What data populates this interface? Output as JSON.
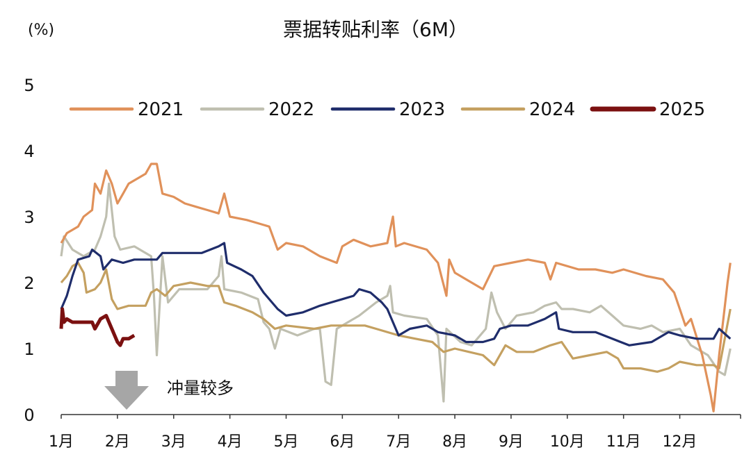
{
  "chart_data": {
    "type": "line",
    "title": "票据转贴利率（6M）",
    "ylabel": "(%)",
    "xlabel": "",
    "ylim": [
      0,
      5
    ],
    "yticks": [
      "0",
      "1",
      "2",
      "3",
      "4",
      "5"
    ],
    "xlim": [
      1,
      13
    ],
    "xticks": [
      "1月",
      "2月",
      "3月",
      "4月",
      "5月",
      "6月",
      "7月",
      "8月",
      "9月",
      "10月",
      "11月",
      "12月"
    ],
    "grid": false,
    "legend": "top",
    "annotation": {
      "text": "冲量较多",
      "month": 2.2,
      "arrow": "down",
      "color": "#A6A6A6"
    },
    "series": [
      {
        "name": "2021",
        "color": "#E0915A",
        "points": [
          [
            1,
            2.6
          ],
          [
            1.1,
            2.75
          ],
          [
            1.3,
            2.85
          ],
          [
            1.4,
            3.0
          ],
          [
            1.55,
            3.1
          ],
          [
            1.6,
            3.5
          ],
          [
            1.7,
            3.35
          ],
          [
            1.8,
            3.7
          ],
          [
            1.9,
            3.5
          ],
          [
            2.0,
            3.2
          ],
          [
            2.1,
            3.35
          ],
          [
            2.2,
            3.5
          ],
          [
            2.5,
            3.65
          ],
          [
            2.6,
            3.8
          ],
          [
            2.7,
            3.8
          ],
          [
            2.8,
            3.35
          ],
          [
            3.0,
            3.3
          ],
          [
            3.2,
            3.2
          ],
          [
            3.4,
            3.15
          ],
          [
            3.6,
            3.1
          ],
          [
            3.8,
            3.05
          ],
          [
            3.9,
            3.35
          ],
          [
            4.0,
            3.0
          ],
          [
            4.3,
            2.95
          ],
          [
            4.5,
            2.9
          ],
          [
            4.7,
            2.85
          ],
          [
            4.85,
            2.5
          ],
          [
            5.0,
            2.6
          ],
          [
            5.3,
            2.55
          ],
          [
            5.6,
            2.4
          ],
          [
            5.9,
            2.3
          ],
          [
            6.0,
            2.55
          ],
          [
            6.2,
            2.65
          ],
          [
            6.5,
            2.55
          ],
          [
            6.8,
            2.6
          ],
          [
            6.9,
            3.0
          ],
          [
            6.95,
            2.55
          ],
          [
            7.1,
            2.6
          ],
          [
            7.5,
            2.5
          ],
          [
            7.7,
            2.3
          ],
          [
            7.85,
            1.8
          ],
          [
            7.9,
            2.35
          ],
          [
            8.0,
            2.15
          ],
          [
            8.3,
            2.0
          ],
          [
            8.5,
            1.9
          ],
          [
            8.7,
            2.25
          ],
          [
            9.0,
            2.3
          ],
          [
            9.3,
            2.35
          ],
          [
            9.6,
            2.3
          ],
          [
            9.7,
            2.05
          ],
          [
            9.8,
            2.3
          ],
          [
            10.2,
            2.2
          ],
          [
            10.5,
            2.2
          ],
          [
            10.8,
            2.15
          ],
          [
            11.0,
            2.2
          ],
          [
            11.4,
            2.1
          ],
          [
            11.7,
            2.05
          ],
          [
            11.9,
            1.85
          ],
          [
            12.0,
            1.6
          ],
          [
            12.1,
            1.35
          ],
          [
            12.2,
            1.45
          ],
          [
            12.4,
            0.9
          ],
          [
            12.55,
            0.3
          ],
          [
            12.6,
            0.05
          ],
          [
            12.7,
            0.9
          ],
          [
            12.85,
            2.0
          ],
          [
            12.9,
            2.3
          ]
        ]
      },
      {
        "name": "2022",
        "color": "#BFBFB0",
        "points": [
          [
            1,
            2.4
          ],
          [
            1.05,
            2.7
          ],
          [
            1.2,
            2.5
          ],
          [
            1.4,
            2.4
          ],
          [
            1.6,
            2.5
          ],
          [
            1.7,
            2.7
          ],
          [
            1.8,
            3.0
          ],
          [
            1.85,
            3.5
          ],
          [
            1.95,
            2.7
          ],
          [
            2.05,
            2.5
          ],
          [
            2.3,
            2.55
          ],
          [
            2.5,
            2.45
          ],
          [
            2.6,
            2.4
          ],
          [
            2.65,
            1.8
          ],
          [
            2.7,
            0.9
          ],
          [
            2.8,
            2.4
          ],
          [
            2.9,
            1.7
          ],
          [
            3.1,
            1.9
          ],
          [
            3.3,
            1.9
          ],
          [
            3.6,
            1.9
          ],
          [
            3.8,
            2.1
          ],
          [
            3.85,
            2.4
          ],
          [
            3.9,
            1.9
          ],
          [
            4.2,
            1.85
          ],
          [
            4.5,
            1.75
          ],
          [
            4.6,
            1.4
          ],
          [
            4.7,
            1.3
          ],
          [
            4.8,
            1.0
          ],
          [
            4.9,
            1.3
          ],
          [
            5.2,
            1.2
          ],
          [
            5.5,
            1.3
          ],
          [
            5.6,
            1.3
          ],
          [
            5.7,
            0.5
          ],
          [
            5.8,
            0.45
          ],
          [
            5.9,
            1.3
          ],
          [
            6.1,
            1.4
          ],
          [
            6.3,
            1.5
          ],
          [
            6.6,
            1.7
          ],
          [
            6.8,
            1.8
          ],
          [
            6.85,
            1.95
          ],
          [
            6.9,
            1.55
          ],
          [
            7.1,
            1.5
          ],
          [
            7.5,
            1.45
          ],
          [
            7.7,
            1.2
          ],
          [
            7.8,
            0.2
          ],
          [
            7.85,
            1.3
          ],
          [
            8.1,
            1.1
          ],
          [
            8.3,
            1.05
          ],
          [
            8.55,
            1.3
          ],
          [
            8.65,
            1.85
          ],
          [
            8.75,
            1.55
          ],
          [
            8.9,
            1.3
          ],
          [
            9.1,
            1.5
          ],
          [
            9.4,
            1.55
          ],
          [
            9.6,
            1.65
          ],
          [
            9.8,
            1.7
          ],
          [
            9.9,
            1.6
          ],
          [
            10.1,
            1.6
          ],
          [
            10.4,
            1.55
          ],
          [
            10.6,
            1.65
          ],
          [
            10.8,
            1.5
          ],
          [
            11.0,
            1.35
          ],
          [
            11.3,
            1.3
          ],
          [
            11.5,
            1.35
          ],
          [
            11.7,
            1.25
          ],
          [
            12.0,
            1.3
          ],
          [
            12.2,
            1.05
          ],
          [
            12.5,
            0.9
          ],
          [
            12.7,
            0.65
          ],
          [
            12.8,
            0.6
          ],
          [
            12.9,
            1.0
          ]
        ]
      },
      {
        "name": "2023",
        "color": "#1F2D6B",
        "points": [
          [
            1,
            1.6
          ],
          [
            1.1,
            1.8
          ],
          [
            1.2,
            2.1
          ],
          [
            1.3,
            2.35
          ],
          [
            1.5,
            2.4
          ],
          [
            1.55,
            2.5
          ],
          [
            1.7,
            2.4
          ],
          [
            1.75,
            2.2
          ],
          [
            1.9,
            2.35
          ],
          [
            2.1,
            2.3
          ],
          [
            2.3,
            2.35
          ],
          [
            2.7,
            2.35
          ],
          [
            2.8,
            2.45
          ],
          [
            3.1,
            2.45
          ],
          [
            3.5,
            2.45
          ],
          [
            3.8,
            2.55
          ],
          [
            3.9,
            2.6
          ],
          [
            3.95,
            2.3
          ],
          [
            4.2,
            2.2
          ],
          [
            4.4,
            2.1
          ],
          [
            4.6,
            1.85
          ],
          [
            4.85,
            1.6
          ],
          [
            5.0,
            1.5
          ],
          [
            5.3,
            1.55
          ],
          [
            5.6,
            1.65
          ],
          [
            5.8,
            1.7
          ],
          [
            6.0,
            1.75
          ],
          [
            6.2,
            1.8
          ],
          [
            6.3,
            1.9
          ],
          [
            6.5,
            1.85
          ],
          [
            6.7,
            1.7
          ],
          [
            6.8,
            1.6
          ],
          [
            6.9,
            1.4
          ],
          [
            7.0,
            1.2
          ],
          [
            7.2,
            1.3
          ],
          [
            7.5,
            1.35
          ],
          [
            7.7,
            1.25
          ],
          [
            8.0,
            1.2
          ],
          [
            8.2,
            1.1
          ],
          [
            8.5,
            1.1
          ],
          [
            8.7,
            1.15
          ],
          [
            8.8,
            1.3
          ],
          [
            9.0,
            1.35
          ],
          [
            9.3,
            1.35
          ],
          [
            9.6,
            1.45
          ],
          [
            9.8,
            1.55
          ],
          [
            9.85,
            1.3
          ],
          [
            10.1,
            1.25
          ],
          [
            10.5,
            1.25
          ],
          [
            10.8,
            1.15
          ],
          [
            11.1,
            1.05
          ],
          [
            11.5,
            1.1
          ],
          [
            11.7,
            1.2
          ],
          [
            11.8,
            1.25
          ],
          [
            12.0,
            1.2
          ],
          [
            12.3,
            1.15
          ],
          [
            12.6,
            1.15
          ],
          [
            12.7,
            1.3
          ],
          [
            12.9,
            1.15
          ]
        ]
      },
      {
        "name": "2024",
        "color": "#C4A060",
        "points": [
          [
            1,
            2.0
          ],
          [
            1.1,
            2.1
          ],
          [
            1.2,
            2.25
          ],
          [
            1.3,
            2.3
          ],
          [
            1.4,
            2.15
          ],
          [
            1.45,
            1.85
          ],
          [
            1.6,
            1.9
          ],
          [
            1.7,
            2.0
          ],
          [
            1.8,
            2.2
          ],
          [
            1.9,
            1.75
          ],
          [
            2.0,
            1.6
          ],
          [
            2.2,
            1.65
          ],
          [
            2.5,
            1.65
          ],
          [
            2.6,
            1.85
          ],
          [
            2.7,
            1.9
          ],
          [
            2.85,
            1.8
          ],
          [
            3.0,
            1.95
          ],
          [
            3.3,
            2.0
          ],
          [
            3.6,
            1.95
          ],
          [
            3.8,
            1.95
          ],
          [
            3.9,
            1.7
          ],
          [
            4.1,
            1.65
          ],
          [
            4.4,
            1.55
          ],
          [
            4.6,
            1.45
          ],
          [
            4.8,
            1.3
          ],
          [
            5.0,
            1.35
          ],
          [
            5.5,
            1.3
          ],
          [
            5.8,
            1.35
          ],
          [
            6.0,
            1.35
          ],
          [
            6.4,
            1.35
          ],
          [
            6.6,
            1.3
          ],
          [
            7.0,
            1.2
          ],
          [
            7.3,
            1.15
          ],
          [
            7.6,
            1.1
          ],
          [
            7.8,
            0.95
          ],
          [
            8.0,
            1.0
          ],
          [
            8.5,
            0.9
          ],
          [
            8.7,
            0.75
          ],
          [
            8.9,
            1.05
          ],
          [
            9.1,
            0.95
          ],
          [
            9.4,
            0.95
          ],
          [
            9.7,
            1.05
          ],
          [
            9.9,
            1.1
          ],
          [
            10.1,
            0.85
          ],
          [
            10.4,
            0.9
          ],
          [
            10.7,
            0.95
          ],
          [
            10.9,
            0.85
          ],
          [
            11.0,
            0.7
          ],
          [
            11.3,
            0.7
          ],
          [
            11.6,
            0.65
          ],
          [
            11.8,
            0.7
          ],
          [
            12.0,
            0.8
          ],
          [
            12.3,
            0.75
          ],
          [
            12.6,
            0.75
          ],
          [
            12.7,
            0.7
          ],
          [
            12.9,
            1.6
          ]
        ]
      },
      {
        "name": "2025",
        "color": "#7B1010",
        "points": [
          [
            1,
            1.3
          ],
          [
            1.02,
            1.6
          ],
          [
            1.05,
            1.4
          ],
          [
            1.1,
            1.45
          ],
          [
            1.2,
            1.4
          ],
          [
            1.4,
            1.4
          ],
          [
            1.55,
            1.4
          ],
          [
            1.6,
            1.3
          ],
          [
            1.7,
            1.45
          ],
          [
            1.8,
            1.5
          ],
          [
            1.9,
            1.3
          ],
          [
            2.0,
            1.1
          ],
          [
            2.05,
            1.05
          ],
          [
            2.1,
            1.15
          ],
          [
            2.2,
            1.15
          ],
          [
            2.3,
            1.2
          ]
        ]
      }
    ]
  }
}
